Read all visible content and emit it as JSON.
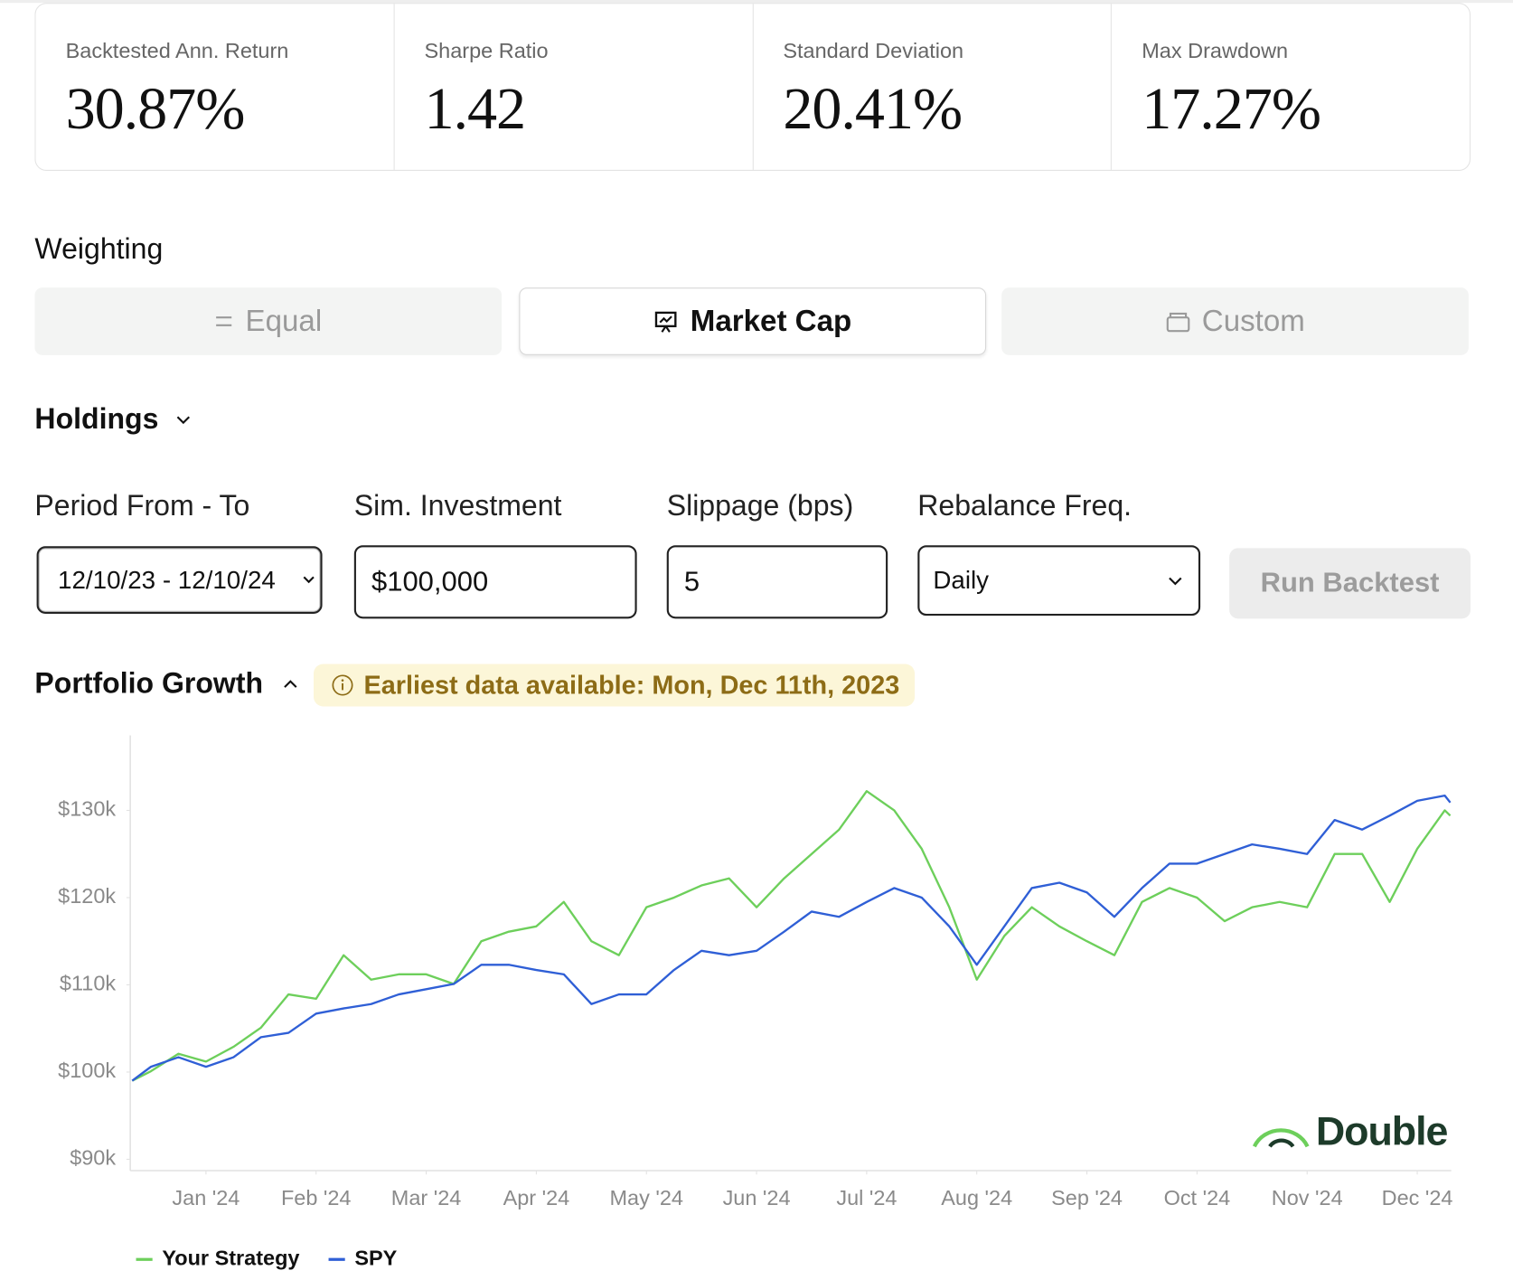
{
  "metrics": [
    {
      "label": "Backtested Ann. Return",
      "value": "30.87%"
    },
    {
      "label": "Sharpe Ratio",
      "value": "1.42"
    },
    {
      "label": "Standard Deviation",
      "value": "20.41%"
    },
    {
      "label": "Max Drawdown",
      "value": "17.27%"
    }
  ],
  "weighting": {
    "title": "Weighting",
    "options": [
      "Equal",
      "Market Cap",
      "Custom"
    ]
  },
  "holdings": "Holdings",
  "form": {
    "fields": [
      {
        "label": "Period From - To",
        "value": "12/10/23 - 12/10/24"
      },
      {
        "label": "Sim. Investment",
        "value": "$100,000"
      },
      {
        "label": "Slippage (bps)",
        "value": "5"
      },
      {
        "label": "Rebalance Freq.",
        "value": "Daily"
      }
    ],
    "button": "Run Backtest"
  },
  "portfolio_growth": {
    "title": "Portfolio Growth",
    "notice": "Earliest data available: Mon, Dec 11th, 2023"
  },
  "chart_data": {
    "type": "line",
    "watermark": "Double",
    "x": [
      0.33,
      0.5,
      0.75,
      1,
      1.25,
      1.5,
      1.75,
      2,
      2.25,
      2.5,
      2.75,
      3,
      3.25,
      3.5,
      3.75,
      4,
      4.25,
      4.5,
      4.75,
      5,
      5.25,
      5.5,
      5.75,
      6,
      6.25,
      6.5,
      6.75,
      7,
      7.25,
      7.5,
      7.75,
      8,
      8.25,
      8.5,
      8.75,
      9,
      9.25,
      9.5,
      9.75,
      10,
      10.25,
      10.5,
      10.75,
      11,
      11.25,
      11.5,
      11.75,
      12,
      12.25,
      12.3
    ],
    "series": [
      {
        "name": "Your Strategy",
        "color": "#6dcf5b",
        "values": [
          99000,
          100100,
          102100,
          101200,
          102900,
          105100,
          108900,
          108400,
          113400,
          110600,
          111200,
          111200,
          110100,
          115000,
          116100,
          116700,
          119500,
          115000,
          113400,
          118900,
          120000,
          121400,
          122200,
          118900,
          122200,
          125000,
          127800,
          132200,
          130000,
          125600,
          118900,
          110600,
          115600,
          118900,
          116700,
          115000,
          113400,
          119500,
          121100,
          120000,
          117300,
          118900,
          119500,
          118900,
          125000,
          125000,
          119500,
          125600,
          130000,
          129400
        ]
      },
      {
        "name": "SPY",
        "color": "#2f5fd6",
        "values": [
          99000,
          100600,
          101700,
          100600,
          101700,
          104000,
          104500,
          106700,
          107300,
          107800,
          108900,
          109500,
          110100,
          112300,
          112300,
          111700,
          111200,
          107800,
          108900,
          108900,
          111700,
          113900,
          113400,
          113900,
          116100,
          118400,
          117800,
          119500,
          121100,
          120000,
          116700,
          112300,
          116700,
          121100,
          121700,
          120600,
          117800,
          121100,
          123900,
          123900,
          125000,
          126100,
          125600,
          125000,
          128900,
          127800,
          129400,
          131100,
          131700,
          130900
        ]
      }
    ],
    "xlim": [
      0.33,
      12.3
    ],
    "xticks": [
      {
        "value": 1,
        "label": "Jan '24"
      },
      {
        "value": 2,
        "label": "Feb '24"
      },
      {
        "value": 3,
        "label": "Mar '24"
      },
      {
        "value": 4,
        "label": "Apr '24"
      },
      {
        "value": 5,
        "label": "May '24"
      },
      {
        "value": 6,
        "label": "Jun '24"
      },
      {
        "value": 7,
        "label": "Jul '24"
      },
      {
        "value": 8,
        "label": "Aug '24"
      },
      {
        "value": 9,
        "label": "Sep '24"
      },
      {
        "value": 10,
        "label": "Oct '24"
      },
      {
        "value": 11,
        "label": "Nov '24"
      },
      {
        "value": 12,
        "label": "Dec '24"
      }
    ],
    "ylim": [
      88700,
      138600
    ],
    "yticks": [
      {
        "value": 90000,
        "label": "$90k"
      },
      {
        "value": 100000,
        "label": "$100k"
      },
      {
        "value": 110000,
        "label": "$110k"
      },
      {
        "value": 120000,
        "label": "$120k"
      },
      {
        "value": 130000,
        "label": "$130k"
      }
    ],
    "grid": false
  }
}
